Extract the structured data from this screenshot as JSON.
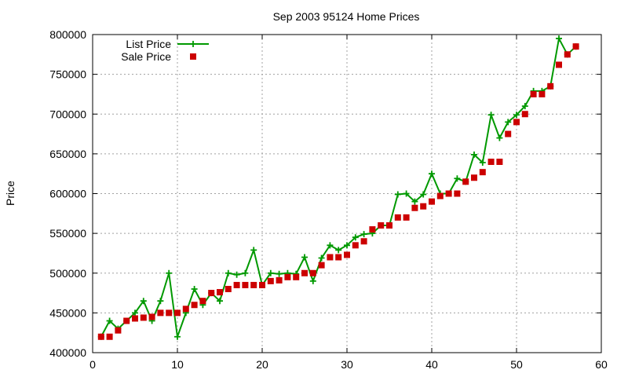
{
  "chart_data": {
    "type": "line",
    "title": "Sep 2003 95124 Home Prices",
    "xlabel": "",
    "ylabel": "Price",
    "xlim": [
      0,
      60
    ],
    "ylim": [
      400000,
      800000
    ],
    "x_ticks": [
      0,
      10,
      20,
      30,
      40,
      50,
      60
    ],
    "y_ticks": [
      400000,
      450000,
      500000,
      550000,
      600000,
      650000,
      700000,
      750000,
      800000
    ],
    "grid": true,
    "legend_position": "top-left",
    "series": [
      {
        "name": "List Price",
        "style": "linespoints",
        "marker": "plus",
        "color": "#009900",
        "x": [
          1,
          2,
          3,
          4,
          5,
          6,
          7,
          8,
          9,
          10,
          11,
          12,
          13,
          14,
          15,
          16,
          17,
          18,
          19,
          20,
          21,
          22,
          23,
          24,
          25,
          26,
          27,
          28,
          29,
          30,
          31,
          32,
          33,
          34,
          35,
          36,
          37,
          38,
          39,
          40,
          41,
          42,
          43,
          44,
          45,
          46,
          47,
          48,
          49,
          50,
          51,
          52,
          53,
          54,
          55,
          56,
          57
        ],
        "y": [
          420000,
          440000,
          430000,
          440000,
          450000,
          465000,
          440000,
          465000,
          500000,
          420000,
          450000,
          480000,
          460000,
          475000,
          465000,
          500000,
          498000,
          500000,
          529000,
          485000,
          500000,
          499000,
          500000,
          499000,
          520000,
          490000,
          519000,
          535000,
          529000,
          535000,
          545000,
          549000,
          550000,
          560000,
          560000,
          599000,
          600000,
          590000,
          599000,
          625000,
          600000,
          600000,
          619000,
          615000,
          649000,
          639000,
          699000,
          670000,
          690000,
          699000,
          710000,
          729000,
          729000,
          735000,
          795000,
          775000,
          785000
        ]
      },
      {
        "name": "Sale Price",
        "style": "points",
        "marker": "square",
        "color": "#cc0000",
        "x": [
          1,
          2,
          3,
          4,
          5,
          6,
          7,
          8,
          9,
          10,
          11,
          12,
          13,
          14,
          15,
          16,
          17,
          18,
          19,
          20,
          21,
          22,
          23,
          24,
          25,
          26,
          27,
          28,
          29,
          30,
          31,
          32,
          33,
          34,
          35,
          36,
          37,
          38,
          39,
          40,
          41,
          42,
          43,
          44,
          45,
          46,
          47,
          48,
          49,
          50,
          51,
          52,
          53,
          54,
          55,
          56,
          57
        ],
        "y": [
          420000,
          420000,
          428000,
          440000,
          443000,
          444000,
          445000,
          450000,
          450000,
          450000,
          455000,
          460000,
          465000,
          475000,
          476000,
          480000,
          485000,
          485000,
          485000,
          485000,
          490000,
          491000,
          495000,
          495000,
          500000,
          500000,
          510000,
          520000,
          520000,
          523000,
          535000,
          540000,
          555000,
          560000,
          560000,
          570000,
          570000,
          582000,
          584000,
          590000,
          597000,
          600000,
          600000,
          615000,
          620000,
          627000,
          640000,
          640000,
          675000,
          690000,
          700000,
          725000,
          725000,
          735000,
          762000,
          775000,
          785000
        ]
      }
    ]
  }
}
